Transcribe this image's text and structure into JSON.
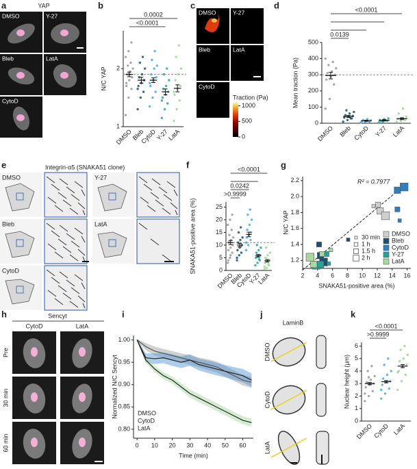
{
  "images": [
    {
      "label": "a",
      "title": "YAP",
      "tiles": [
        "DMSO",
        "Y-27",
        "Bleb",
        "LatA",
        "CytoD"
      ]
    },
    {
      "label": "c",
      "tiles": [
        "DMSO",
        "Y-27",
        "Bleb",
        "LatA",
        "CytoD"
      ],
      "colorbar": {
        "title": "Traction (Pa)",
        "lim": [
          0,
          1100
        ],
        "ticks": [
          0,
          500,
          1000
        ]
      }
    },
    {
      "label": "e",
      "title": "Integrin-α5 (SNAKA51 clone)",
      "tiles": [
        "DMSO",
        "Y-27",
        "Bleb",
        "LatA",
        "CytoD"
      ]
    },
    {
      "label": "h",
      "title": "Sencyt",
      "columns": [
        "CytoD",
        "LatA"
      ],
      "rows": [
        "Pre",
        "30 min",
        "60 min"
      ]
    },
    {
      "label": "j",
      "title": "LaminB",
      "rows": [
        "DMSO",
        "CytoD",
        "LatA"
      ]
    }
  ],
  "chart_data": [
    {
      "type": "dotplot",
      "label": "b",
      "ylabel": "N/C YAP",
      "ylim": [
        1,
        2.65
      ],
      "yticks": [
        1,
        2
      ],
      "ref": 1.9,
      "groups": [
        {
          "name": "DMSO",
          "color": "#9a9a9a",
          "mean": 1.9,
          "sem": 0.04,
          "points": [
            1.2,
            1.5,
            1.65,
            1.75,
            1.8,
            1.85,
            1.9,
            1.95,
            2.0,
            2.05,
            2.1,
            2.2,
            2.3,
            2.45,
            1.7,
            1.9
          ]
        },
        {
          "name": "Bleb",
          "color": "#1d4f6e",
          "mean": 1.8,
          "sem": 0.05,
          "points": [
            1.3,
            1.5,
            1.6,
            1.7,
            1.75,
            1.8,
            1.85,
            1.9,
            2.0,
            2.1,
            2.2,
            1.65
          ]
        },
        {
          "name": "CytoD",
          "color": "#4aa8d8",
          "mean": 1.8,
          "sem": 0.04,
          "points": [
            1.35,
            1.5,
            1.6,
            1.7,
            1.8,
            1.85,
            1.9,
            2.0,
            2.05,
            2.15,
            2.3,
            1.75
          ]
        },
        {
          "name": "Y-27",
          "color": "#2aa198",
          "mean": 1.6,
          "sem": 0.05,
          "points": [
            1.15,
            1.3,
            1.4,
            1.5,
            1.55,
            1.6,
            1.65,
            1.7,
            1.8,
            1.9,
            2.0,
            1.45
          ]
        },
        {
          "name": "LatA",
          "color": "#9fd49a",
          "mean": 1.66,
          "sem": 0.06,
          "points": [
            1.1,
            1.3,
            1.45,
            1.55,
            1.65,
            1.7,
            1.8,
            1.9,
            2.0,
            2.2,
            2.4,
            1.6
          ]
        }
      ],
      "brackets": [
        {
          "between": [
            0,
            3
          ],
          "label": "<0.0001"
        },
        {
          "between": [
            0,
            4
          ],
          "label": "0.0002"
        }
      ]
    },
    {
      "type": "dotplot",
      "label": "d",
      "ylabel": "Mean traction (Pa)",
      "ylim": [
        0,
        500
      ],
      "yticks": [
        0,
        100,
        200,
        300,
        400,
        500
      ],
      "ref": 300,
      "groups": [
        {
          "name": "DMSO",
          "color": "#9a9a9a",
          "mean": 295,
          "sem": 20,
          "points": [
            90,
            150,
            240,
            270,
            290,
            300,
            310,
            320,
            340,
            360,
            380,
            400
          ]
        },
        {
          "name": "Bleb",
          "color": "#1d4f6e",
          "mean": 42,
          "sem": 6,
          "points": [
            10,
            20,
            30,
            35,
            40,
            45,
            50,
            60,
            70,
            80,
            30
          ]
        },
        {
          "name": "CytoD",
          "color": "#4aa8d8",
          "mean": 15,
          "sem": 3,
          "points": [
            5,
            8,
            10,
            12,
            15,
            18,
            20,
            25
          ]
        },
        {
          "name": "Y-27",
          "color": "#2aa198",
          "mean": 18,
          "sem": 4,
          "points": [
            5,
            10,
            15,
            20,
            25,
            30,
            12
          ]
        },
        {
          "name": "LatA",
          "color": "#9fd49a",
          "mean": 28,
          "sem": 6,
          "points": [
            8,
            15,
            20,
            25,
            30,
            40,
            60,
            90
          ]
        }
      ],
      "brackets": [
        {
          "between": [
            0,
            1
          ],
          "label": "0.0139"
        },
        {
          "between": [
            0,
            2
          ]
        },
        {
          "between": [
            0,
            3
          ]
        },
        {
          "between": [
            0,
            4
          ],
          "label": "<0.0001"
        }
      ]
    },
    {
      "type": "dotplot",
      "label": "f",
      "ylabel": "SNAKA51-positive area (%)",
      "ylim": [
        0,
        27
      ],
      "yticks": [
        0,
        5,
        10,
        15,
        20,
        25
      ],
      "ref": 11,
      "groups": [
        {
          "name": "DMSO",
          "color": "#9a9a9a",
          "mean": 11,
          "sem": 0.8,
          "points": [
            3,
            5,
            7,
            8,
            9,
            10,
            11,
            12,
            13,
            14,
            16,
            18,
            20,
            22,
            4,
            6
          ]
        },
        {
          "name": "Bleb",
          "color": "#1d4f6e",
          "mean": 10,
          "sem": 0.7,
          "points": [
            4,
            6,
            7,
            8,
            9,
            10,
            11,
            12,
            13,
            15,
            17,
            5
          ]
        },
        {
          "name": "CytoD",
          "color": "#4aa8d8",
          "mean": 14.2,
          "sem": 0.9,
          "points": [
            8,
            10,
            12,
            13,
            14,
            15,
            16,
            18,
            20,
            22,
            24,
            11
          ]
        },
        {
          "name": "Y-27",
          "color": "#2aa198",
          "mean": 5.8,
          "sem": 0.5,
          "points": [
            2,
            3,
            4,
            5,
            5.5,
            6,
            7,
            8,
            9,
            10,
            4.5
          ]
        },
        {
          "name": "LatA",
          "color": "#9fd49a",
          "mean": 3.8,
          "sem": 0.5,
          "points": [
            0.5,
            1,
            2,
            3,
            3.5,
            4,
            5,
            6,
            7,
            9,
            2.5,
            1.5
          ]
        }
      ],
      "brackets": [
        {
          "between": [
            0,
            1
          ],
          "label": ">0.9999"
        },
        {
          "between": [
            0,
            2
          ],
          "label": "0.0242"
        },
        {
          "between": [
            0,
            3
          ]
        },
        {
          "between": [
            0,
            4
          ],
          "label": "<0.0001"
        }
      ]
    },
    {
      "type": "scatter",
      "label": "g",
      "xlabel": "SNAKA51-positive area (%)",
      "ylabel": "N/C YAP",
      "annotation": "R² = 0.7977",
      "xlim": [
        2,
        16.5
      ],
      "xticks": [
        2,
        4,
        6,
        8,
        10,
        12,
        14,
        16
      ],
      "ylim": [
        1.1,
        2.25
      ],
      "yticks": [
        1.2,
        1.4,
        1.6,
        1.8,
        {
          "value": 2.0,
          "label": "2.0"
        },
        2.2
      ],
      "sizes": [
        "30 min",
        "1 h",
        "1.5 h",
        "2 h"
      ],
      "fit": {
        "x": [
          2,
          16
        ],
        "y": [
          1.08,
          2.17
        ]
      },
      "series": [
        {
          "name": "DMSO",
          "color": "#cfcfcf",
          "x": [
            11.5,
            12.1,
            12.4,
            13.1
          ],
          "y": [
            1.88,
            1.9,
            1.82,
            1.76
          ],
          "time": [
            0,
            1,
            2,
            3
          ]
        },
        {
          "name": "Bleb",
          "color": "#1d4f6e",
          "x": [
            4.2,
            4.4,
            4.8,
            8.1
          ],
          "y": [
            1.4,
            1.26,
            1.18,
            1.46
          ],
          "time": [
            1,
            2,
            3,
            0
          ]
        },
        {
          "name": "CytoD",
          "color": "#2f7fb8",
          "x": [
            14.7,
            15.6,
            14.7,
            15.0
          ],
          "y": [
            2.08,
            2.12,
            1.84,
            1.7
          ],
          "time": [
            2,
            3,
            1,
            0
          ]
        },
        {
          "name": "Y-27",
          "color": "#2aa198",
          "x": [
            3.8,
            4.4,
            5.2,
            5.5
          ],
          "y": [
            1.14,
            1.15,
            1.28,
            1.16
          ],
          "time": [
            3,
            2,
            1,
            0
          ]
        },
        {
          "name": "LatA",
          "color": "#a8d8a0",
          "x": [
            3.0,
            3.5,
            5.8,
            4.6
          ],
          "y": [
            1.24,
            1.15,
            1.33,
            1.28
          ],
          "time": [
            3,
            2,
            0,
            1
          ]
        }
      ]
    },
    {
      "type": "line",
      "label": "i",
      "xlabel": "Time (min)",
      "ylabel": "Normalized N/C Sencyt",
      "xlim": [
        -2,
        66
      ],
      "xticks": [
        0,
        10,
        20,
        30,
        40,
        50,
        60
      ],
      "ylim": [
        0.78,
        1.01
      ],
      "yticks": [
        {
          "value": 0.8,
          "label": "0.80"
        },
        0.85,
        {
          "value": 0.9,
          "label": "0.90"
        },
        0.95,
        {
          "value": 1.0,
          "label": "1.00"
        }
      ],
      "x": [
        0,
        5,
        10,
        15,
        20,
        25,
        30,
        35,
        40,
        45,
        50,
        55,
        60,
        65
      ],
      "series": [
        {
          "name": "DMSO",
          "color": "#9a9a9a",
          "values": [
            1.0,
            0.985,
            0.975,
            0.97,
            0.965,
            0.96,
            0.955,
            0.95,
            0.945,
            0.94,
            0.93,
            0.92,
            0.91,
            0.905
          ],
          "errors": [
            0.002,
            0.008,
            0.01,
            0.01,
            0.01,
            0.01,
            0.011,
            0.011,
            0.012,
            0.012,
            0.012,
            0.012,
            0.012,
            0.012
          ]
        },
        {
          "name": "CytoD",
          "color": "#4a90d0",
          "values": [
            1.0,
            0.96,
            0.958,
            0.96,
            0.955,
            0.95,
            0.955,
            0.945,
            0.94,
            0.935,
            0.93,
            0.925,
            0.92,
            0.91
          ],
          "errors": [
            0.002,
            0.01,
            0.012,
            0.012,
            0.013,
            0.013,
            0.013,
            0.013,
            0.014,
            0.014,
            0.014,
            0.014,
            0.015,
            0.015
          ]
        },
        {
          "name": "LatA",
          "color": "#9fd49a",
          "values": [
            1.0,
            0.955,
            0.935,
            0.92,
            0.91,
            0.895,
            0.88,
            0.87,
            0.86,
            0.85,
            0.84,
            0.83,
            0.82,
            0.815
          ],
          "errors": [
            0.002,
            0.007,
            0.008,
            0.008,
            0.008,
            0.008,
            0.009,
            0.009,
            0.009,
            0.009,
            0.009,
            0.009,
            0.009,
            0.009
          ]
        }
      ]
    },
    {
      "type": "dotplot",
      "label": "k",
      "ylabel": "Nuclear height (μm)",
      "ylim": [
        0,
        6.3
      ],
      "yticks": [
        0,
        1,
        2,
        3,
        4,
        5,
        6
      ],
      "groups": [
        {
          "name": "DMSO",
          "color": "#9a9a9a",
          "mean": 3.0,
          "sem": 0.08,
          "points": [
            1.6,
            2.0,
            2.4,
            2.7,
            2.9,
            3.0,
            3.1,
            3.3,
            3.6,
            4.0,
            4.4,
            2.2,
            3.5
          ]
        },
        {
          "name": "CytoD",
          "color": "#4aa8d8",
          "mean": 3.15,
          "sem": 0.09,
          "points": [
            1.8,
            2.2,
            2.6,
            2.9,
            3.1,
            3.2,
            3.4,
            3.7,
            4.0,
            4.5,
            5.0,
            2.5
          ]
        },
        {
          "name": "LatA",
          "color": "#9fd49a",
          "mean": 4.4,
          "sem": 0.12,
          "points": [
            2.5,
            3.2,
            3.7,
            4.0,
            4.3,
            4.5,
            4.8,
            5.0,
            5.3,
            5.7,
            6.0,
            3.9
          ]
        }
      ],
      "brackets": [
        {
          "between": [
            0,
            1
          ],
          "label": ">0.9999"
        },
        {
          "between": [
            0,
            2
          ],
          "label": "<0.0001"
        }
      ]
    }
  ]
}
